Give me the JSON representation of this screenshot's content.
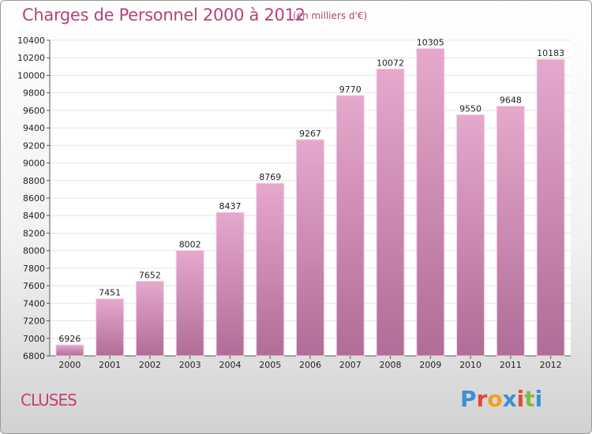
{
  "header": {
    "title": "Charges de Personnel 2000 à 2012",
    "subtitle": "(en milliers d'€)"
  },
  "footer": {
    "city": "CLUSES",
    "logo": "Proxiti",
    "logo_colors": [
      "#3b8fd9",
      "#e8463a",
      "#f0a11c",
      "#3b8fd9",
      "#e8463a",
      "#7bbf3a",
      "#3b8fd9"
    ]
  },
  "colors": {
    "bar_top": "#e6a8cc",
    "bar_bottom": "#b06d97",
    "accent": "#b8407a",
    "grid": "#e4e4e4"
  },
  "chart_data": {
    "type": "bar",
    "title": "Charges de Personnel 2000 à 2012",
    "subtitle": "(en milliers d'€)",
    "categories": [
      "2000",
      "2001",
      "2002",
      "2003",
      "2004",
      "2005",
      "2006",
      "2007",
      "2008",
      "2009",
      "2010",
      "2011",
      "2012"
    ],
    "values": [
      6926,
      7451,
      7652,
      8002,
      8437,
      8769,
      9267,
      9770,
      10072,
      10305,
      9550,
      9648,
      10183
    ],
    "ylim": [
      6800,
      10400
    ],
    "yticks": [
      6800,
      7000,
      7200,
      7400,
      7600,
      7800,
      8000,
      8200,
      8400,
      8600,
      8800,
      9000,
      9200,
      9400,
      9600,
      9800,
      10000,
      10200,
      10400
    ],
    "grid": true,
    "xlabel": "",
    "ylabel": ""
  }
}
